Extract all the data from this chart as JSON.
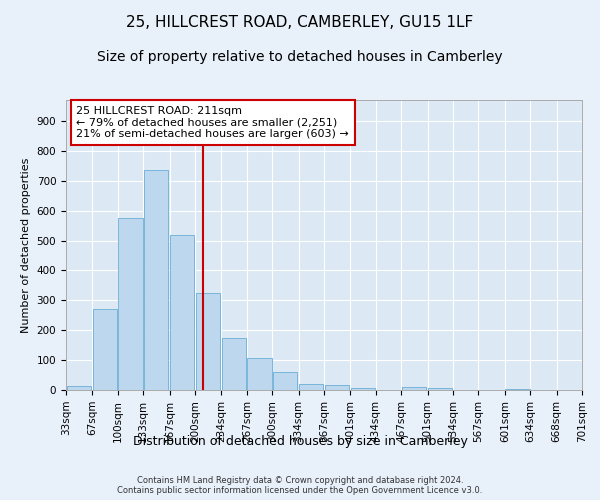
{
  "title": "25, HILLCREST ROAD, CAMBERLEY, GU15 1LF",
  "subtitle": "Size of property relative to detached houses in Camberley",
  "xlabel": "Distribution of detached houses by size in Camberley",
  "ylabel": "Number of detached properties",
  "bar_color": "#bdd7ee",
  "bar_edgecolor": "#6baed6",
  "background_color": "#dce9f5",
  "fig_background_color": "#e8f0fa",
  "grid_color": "#ffffff",
  "vline_x": 211,
  "vline_color": "#cc0000",
  "annotation_text": "25 HILLCREST ROAD: 211sqm\n← 79% of detached houses are smaller (2,251)\n21% of semi-detached houses are larger (603) →",
  "annotation_box_color": "#ffffff",
  "annotation_box_edgecolor": "#cc0000",
  "bins_left_edges": [
    33,
    67,
    100,
    133,
    167,
    200,
    234,
    267,
    300,
    334,
    367,
    401,
    434,
    467,
    501,
    534,
    567,
    601,
    634,
    668
  ],
  "bin_width": 33,
  "counts": [
    14,
    270,
    575,
    735,
    520,
    325,
    175,
    108,
    60,
    20,
    18,
    8,
    0,
    10,
    8,
    0,
    0,
    5,
    0,
    0
  ],
  "xtick_labels": [
    "33sqm",
    "67sqm",
    "100sqm",
    "133sqm",
    "167sqm",
    "200sqm",
    "234sqm",
    "267sqm",
    "300sqm",
    "334sqm",
    "367sqm",
    "401sqm",
    "434sqm",
    "467sqm",
    "501sqm",
    "534sqm",
    "567sqm",
    "601sqm",
    "634sqm",
    "668sqm",
    "701sqm"
  ],
  "ytick_values": [
    0,
    100,
    200,
    300,
    400,
    500,
    600,
    700,
    800,
    900
  ],
  "ylim": [
    0,
    970
  ],
  "footer_text": "Contains HM Land Registry data © Crown copyright and database right 2024.\nContains public sector information licensed under the Open Government Licence v3.0.",
  "title_fontsize": 11,
  "subtitle_fontsize": 10,
  "xlabel_fontsize": 9,
  "ylabel_fontsize": 8,
  "tick_fontsize": 7.5,
  "annotation_fontsize": 8,
  "footer_fontsize": 6
}
